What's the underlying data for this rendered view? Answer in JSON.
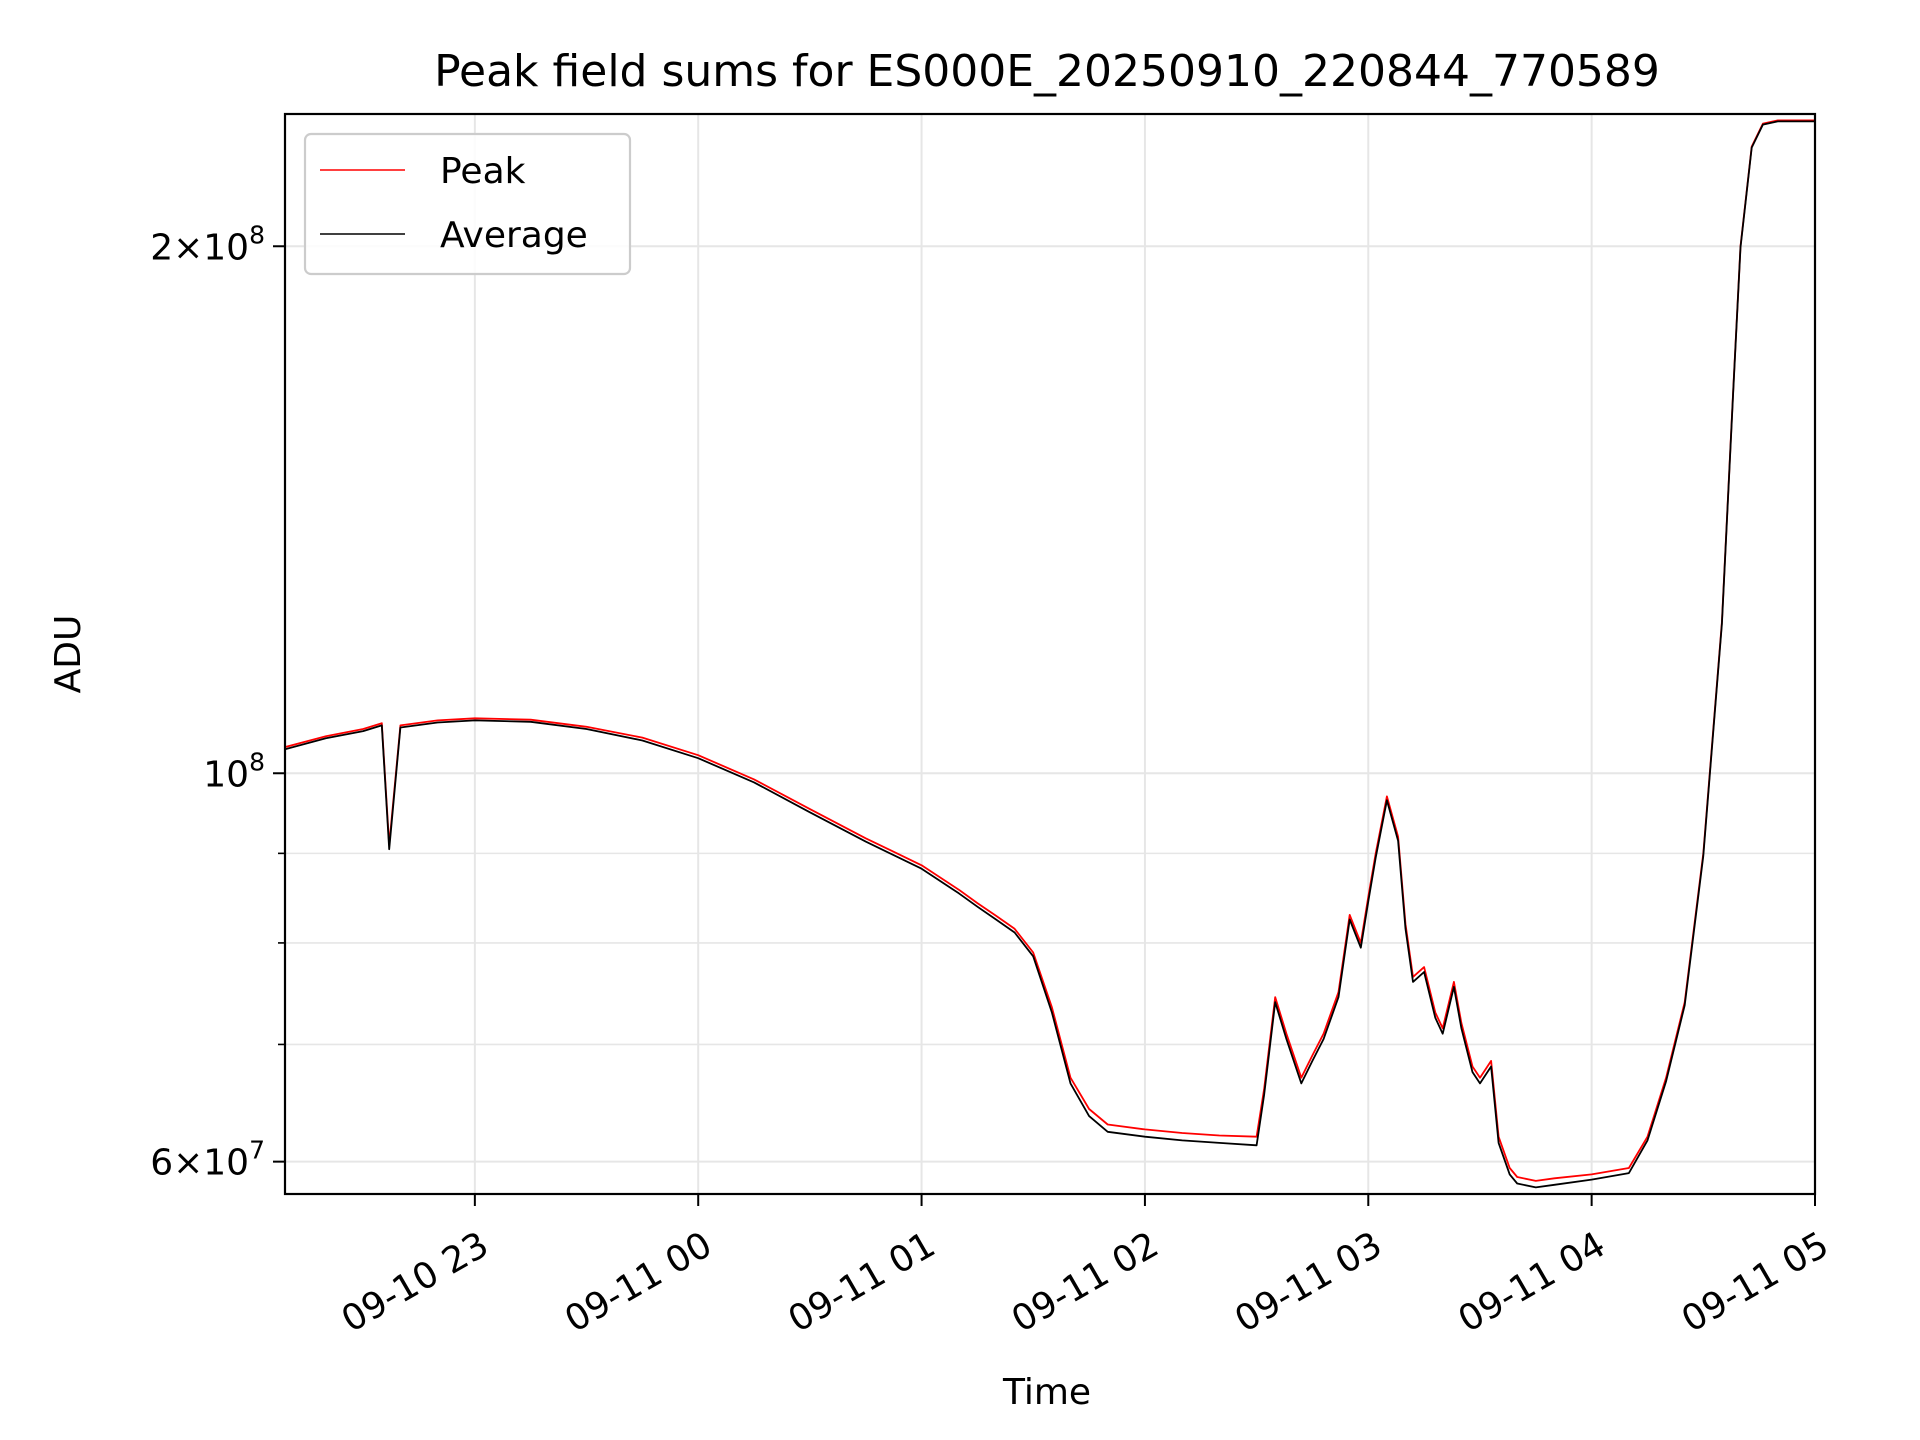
{
  "chart_data": {
    "type": "line",
    "title": "Peak field sums for ES000E_20250910_220844_770589",
    "xlabel": "Time",
    "ylabel": "ADU",
    "y_scale": "log",
    "grid": true,
    "legend_position": "upper-left",
    "xlim": [
      "2025-09-10 22:09",
      "2025-09-11 05:00"
    ],
    "ylim": [
      57500000,
      238000000
    ],
    "x_ticks": [
      {
        "value": "2025-09-10 23:00",
        "label": "09-10 23"
      },
      {
        "value": "2025-09-11 00:00",
        "label": "09-11 00"
      },
      {
        "value": "2025-09-11 01:00",
        "label": "09-11 01"
      },
      {
        "value": "2025-09-11 02:00",
        "label": "09-11 02"
      },
      {
        "value": "2025-09-11 03:00",
        "label": "09-11 03"
      },
      {
        "value": "2025-09-11 04:00",
        "label": "09-11 04"
      },
      {
        "value": "2025-09-11 05:00",
        "label": "09-11 05"
      }
    ],
    "y_major_ticks": [
      {
        "value": 60000000,
        "mantissa": "6",
        "exponent": "7"
      },
      {
        "value": 100000000,
        "mantissa": "",
        "exponent": "8"
      },
      {
        "value": 200000000,
        "mantissa": "2",
        "exponent": "8"
      }
    ],
    "y_minor_ticks": [
      70000000,
      80000000,
      90000000
    ],
    "series": [
      {
        "name": "Peak",
        "color": "#ff0000",
        "x": [
          "2025-09-10 22:09",
          "2025-09-10 22:20",
          "2025-09-10 22:30",
          "2025-09-10 22:35",
          "2025-09-10 22:37",
          "2025-09-10 22:40",
          "2025-09-10 22:50",
          "2025-09-10 23:00",
          "2025-09-10 23:15",
          "2025-09-10 23:30",
          "2025-09-10 23:45",
          "2025-09-11 00:00",
          "2025-09-11 00:15",
          "2025-09-11 00:30",
          "2025-09-11 00:45",
          "2025-09-11 01:00",
          "2025-09-11 01:10",
          "2025-09-11 01:15",
          "2025-09-11 01:20",
          "2025-09-11 01:25",
          "2025-09-11 01:30",
          "2025-09-11 01:35",
          "2025-09-11 01:40",
          "2025-09-11 01:45",
          "2025-09-11 01:50",
          "2025-09-11 02:00",
          "2025-09-11 02:10",
          "2025-09-11 02:20",
          "2025-09-11 02:30",
          "2025-09-11 02:32",
          "2025-09-11 02:35",
          "2025-09-11 02:38",
          "2025-09-11 02:42",
          "2025-09-11 02:45",
          "2025-09-11 02:48",
          "2025-09-11 02:52",
          "2025-09-11 02:55",
          "2025-09-11 02:58",
          "2025-09-11 03:00",
          "2025-09-11 03:02",
          "2025-09-11 03:05",
          "2025-09-11 03:08",
          "2025-09-11 03:10",
          "2025-09-11 03:12",
          "2025-09-11 03:15",
          "2025-09-11 03:18",
          "2025-09-11 03:20",
          "2025-09-11 03:23",
          "2025-09-11 03:25",
          "2025-09-11 03:28",
          "2025-09-11 03:30",
          "2025-09-11 03:33",
          "2025-09-11 03:35",
          "2025-09-11 03:38",
          "2025-09-11 03:40",
          "2025-09-11 03:45",
          "2025-09-11 03:50",
          "2025-09-11 04:00",
          "2025-09-11 04:10",
          "2025-09-11 04:15",
          "2025-09-11 04:20",
          "2025-09-11 04:25",
          "2025-09-11 04:30",
          "2025-09-11 04:35",
          "2025-09-11 04:38",
          "2025-09-11 04:40",
          "2025-09-11 04:43",
          "2025-09-11 04:46",
          "2025-09-11 04:50",
          "2025-09-11 04:55",
          "2025-09-11 05:00"
        ],
        "y": [
          103500000,
          105000000,
          106000000,
          106800000,
          91000000,
          106500000,
          107200000,
          107500000,
          107300000,
          106300000,
          104800000,
          102400000,
          99200000,
          95400000,
          91800000,
          88600000,
          85800000,
          84300000,
          82900000,
          81500000,
          79000000,
          73500000,
          67000000,
          64300000,
          63000000,
          62600000,
          62300000,
          62100000,
          62000000,
          66000000,
          74500000,
          71000000,
          67000000,
          69000000,
          71000000,
          75000000,
          83000000,
          80000000,
          85000000,
          90000000,
          97000000,
          92000000,
          82000000,
          76500000,
          77500000,
          73000000,
          71500000,
          76000000,
          72000000,
          68000000,
          67000000,
          68500000,
          62000000,
          59500000,
          58800000,
          58500000,
          58700000,
          59000000,
          59500000,
          62000000,
          67000000,
          74000000,
          90000000,
          122000000,
          165000000,
          200000000,
          228000000,
          235000000,
          236000000,
          236000000,
          236000000
        ]
      },
      {
        "name": "Average",
        "color": "#000000",
        "x": [
          "2025-09-10 22:09",
          "2025-09-10 22:20",
          "2025-09-10 22:30",
          "2025-09-10 22:35",
          "2025-09-10 22:37",
          "2025-09-10 22:40",
          "2025-09-10 22:50",
          "2025-09-10 23:00",
          "2025-09-10 23:15",
          "2025-09-10 23:30",
          "2025-09-10 23:45",
          "2025-09-11 00:00",
          "2025-09-11 00:15",
          "2025-09-11 00:30",
          "2025-09-11 00:45",
          "2025-09-11 01:00",
          "2025-09-11 01:10",
          "2025-09-11 01:15",
          "2025-09-11 01:20",
          "2025-09-11 01:25",
          "2025-09-11 01:30",
          "2025-09-11 01:35",
          "2025-09-11 01:40",
          "2025-09-11 01:45",
          "2025-09-11 01:50",
          "2025-09-11 02:00",
          "2025-09-11 02:10",
          "2025-09-11 02:20",
          "2025-09-11 02:30",
          "2025-09-11 02:32",
          "2025-09-11 02:35",
          "2025-09-11 02:38",
          "2025-09-11 02:42",
          "2025-09-11 02:45",
          "2025-09-11 02:48",
          "2025-09-11 02:52",
          "2025-09-11 02:55",
          "2025-09-11 02:58",
          "2025-09-11 03:00",
          "2025-09-11 03:02",
          "2025-09-11 03:05",
          "2025-09-11 03:08",
          "2025-09-11 03:10",
          "2025-09-11 03:12",
          "2025-09-11 03:15",
          "2025-09-11 03:18",
          "2025-09-11 03:20",
          "2025-09-11 03:23",
          "2025-09-11 03:25",
          "2025-09-11 03:28",
          "2025-09-11 03:30",
          "2025-09-11 03:33",
          "2025-09-11 03:35",
          "2025-09-11 03:38",
          "2025-09-11 03:40",
          "2025-09-11 03:45",
          "2025-09-11 03:50",
          "2025-09-11 04:00",
          "2025-09-11 04:10",
          "2025-09-11 04:15",
          "2025-09-11 04:20",
          "2025-09-11 04:25",
          "2025-09-11 04:30",
          "2025-09-11 04:35",
          "2025-09-11 04:38",
          "2025-09-11 04:40",
          "2025-09-11 04:43",
          "2025-09-11 04:46",
          "2025-09-11 04:50",
          "2025-09-11 04:55",
          "2025-09-11 05:00"
        ],
        "y": [
          103200000,
          104700000,
          105700000,
          106500000,
          90500000,
          106200000,
          106900000,
          107200000,
          107000000,
          106000000,
          104400000,
          102000000,
          98800000,
          95000000,
          91400000,
          88200000,
          85400000,
          83900000,
          82500000,
          81100000,
          78600000,
          73000000,
          66500000,
          63700000,
          62400000,
          62000000,
          61700000,
          61500000,
          61300000,
          65500000,
          74000000,
          70500000,
          66500000,
          68500000,
          70500000,
          74500000,
          82500000,
          79500000,
          84500000,
          89500000,
          96500000,
          91500000,
          81500000,
          76000000,
          77000000,
          72500000,
          71000000,
          75500000,
          71500000,
          67500000,
          66500000,
          68000000,
          61500000,
          59000000,
          58300000,
          58000000,
          58200000,
          58600000,
          59100000,
          61700000,
          66700000,
          73700000,
          89700000,
          121700000,
          164700000,
          199700000,
          227700000,
          234700000,
          235700000,
          235700000,
          235700000
        ]
      }
    ]
  }
}
